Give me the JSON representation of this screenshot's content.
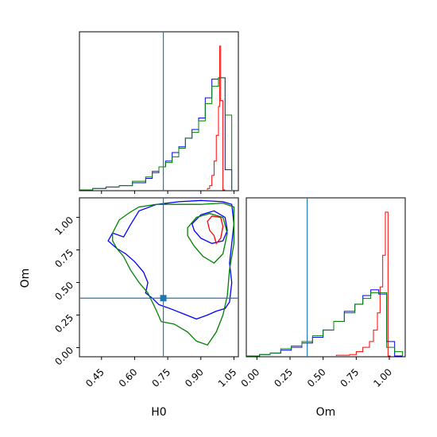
{
  "chart_data": [
    {
      "type": "histogram",
      "panel": "H0-marginal",
      "xlim": [
        0.35,
        1.07
      ],
      "ylim": [
        0,
        1
      ],
      "truth": 0.73,
      "series": [
        {
          "color": "#ff0000",
          "edges": [
            0.93,
            0.94,
            0.95,
            0.96,
            0.97,
            0.98,
            0.985,
            0.99,
            1.0,
            1.01
          ],
          "values": [
            0.01,
            0.03,
            0.1,
            0.2,
            0.38,
            0.58,
            1.0,
            0.62,
            0.0
          ]
        },
        {
          "color": "#0000ff",
          "edges": [
            0.35,
            0.41,
            0.47,
            0.53,
            0.59,
            0.65,
            0.68,
            0.71,
            0.74,
            0.77,
            0.8,
            0.83,
            0.86,
            0.89,
            0.92,
            0.95,
            0.98,
            1.01,
            1.04
          ],
          "values": [
            0.0,
            0.01,
            0.02,
            0.03,
            0.05,
            0.08,
            0.12,
            0.16,
            0.2,
            0.26,
            0.3,
            0.36,
            0.42,
            0.5,
            0.64,
            0.77,
            0.78,
            0.14
          ]
        },
        {
          "color": "#008000",
          "edges": [
            0.35,
            0.41,
            0.47,
            0.53,
            0.59,
            0.65,
            0.68,
            0.71,
            0.74,
            0.77,
            0.8,
            0.83,
            0.86,
            0.89,
            0.92,
            0.95,
            0.98,
            1.01,
            1.04
          ],
          "values": [
            0.0,
            0.01,
            0.02,
            0.03,
            0.06,
            0.09,
            0.13,
            0.16,
            0.19,
            0.23,
            0.29,
            0.36,
            0.4,
            0.48,
            0.6,
            0.72,
            0.78,
            0.52
          ]
        }
      ]
    },
    {
      "type": "contour",
      "panel": "H0-Om-joint",
      "xlabel": "H0",
      "ylabel": "Om",
      "xlim": [
        0.35,
        1.07
      ],
      "ylim": [
        -0.07,
        1.15
      ],
      "xticks": [
        "0.45",
        "0.60",
        "0.75",
        "0.90",
        "1.05"
      ],
      "xtick_values": [
        0.45,
        0.6,
        0.75,
        0.9,
        1.05
      ],
      "yticks": [
        "0.00",
        "0.25",
        "0.50",
        "0.75",
        "1.00"
      ],
      "ytick_values": [
        0.0,
        0.25,
        0.5,
        0.75,
        1.0
      ],
      "truth": {
        "x": 0.73,
        "y": 0.38
      },
      "contours": [
        {
          "color": "#0000ff",
          "points": [
            [
              0.48,
              0.82
            ],
            [
              0.5,
              0.88
            ],
            [
              0.55,
              0.85
            ],
            [
              0.58,
              0.94
            ],
            [
              0.62,
              1.05
            ],
            [
              0.7,
              1.1
            ],
            [
              0.8,
              1.12
            ],
            [
              0.9,
              1.13
            ],
            [
              1.0,
              1.12
            ],
            [
              1.04,
              1.1
            ],
            [
              1.05,
              0.95
            ],
            [
              1.04,
              0.8
            ],
            [
              1.03,
              0.65
            ],
            [
              1.04,
              0.5
            ],
            [
              1.03,
              0.35
            ],
            [
              1.01,
              0.3
            ],
            [
              0.97,
              0.28
            ],
            [
              0.93,
              0.25
            ],
            [
              0.88,
              0.22
            ],
            [
              0.82,
              0.26
            ],
            [
              0.76,
              0.3
            ],
            [
              0.71,
              0.33
            ],
            [
              0.68,
              0.38
            ],
            [
              0.65,
              0.42
            ],
            [
              0.66,
              0.5
            ],
            [
              0.64,
              0.58
            ],
            [
              0.6,
              0.66
            ],
            [
              0.56,
              0.72
            ],
            [
              0.52,
              0.76
            ],
            [
              0.48,
              0.82
            ]
          ]
        },
        {
          "color": "#0000ff",
          "points": [
            [
              0.86,
              0.95
            ],
            [
              0.9,
              1.02
            ],
            [
              0.96,
              1.05
            ],
            [
              1.01,
              1.0
            ],
            [
              1.02,
              0.9
            ],
            [
              1.0,
              0.82
            ],
            [
              0.95,
              0.8
            ],
            [
              0.9,
              0.84
            ],
            [
              0.87,
              0.9
            ],
            [
              0.86,
              0.95
            ]
          ]
        },
        {
          "color": "#008000",
          "points": [
            [
              0.5,
              0.88
            ],
            [
              0.53,
              0.98
            ],
            [
              0.58,
              1.04
            ],
            [
              0.62,
              1.08
            ],
            [
              0.7,
              1.1
            ],
            [
              0.8,
              1.1
            ],
            [
              0.9,
              1.1
            ],
            [
              1.0,
              1.11
            ],
            [
              1.05,
              1.08
            ],
            [
              1.05,
              0.95
            ],
            [
              1.05,
              0.8
            ],
            [
              1.03,
              0.6
            ],
            [
              1.02,
              0.4
            ],
            [
              1.0,
              0.25
            ],
            [
              0.97,
              0.12
            ],
            [
              0.93,
              0.02
            ],
            [
              0.88,
              0.05
            ],
            [
              0.84,
              0.12
            ],
            [
              0.78,
              0.18
            ],
            [
              0.72,
              0.2
            ],
            [
              0.7,
              0.28
            ],
            [
              0.68,
              0.35
            ],
            [
              0.66,
              0.42
            ],
            [
              0.62,
              0.5
            ],
            [
              0.58,
              0.6
            ],
            [
              0.55,
              0.7
            ],
            [
              0.52,
              0.76
            ],
            [
              0.5,
              0.82
            ],
            [
              0.5,
              0.88
            ]
          ]
        },
        {
          "color": "#008000",
          "points": [
            [
              0.84,
              0.92
            ],
            [
              0.88,
              1.0
            ],
            [
              0.94,
              1.03
            ],
            [
              1.0,
              1.0
            ],
            [
              1.02,
              0.88
            ],
            [
              1.0,
              0.72
            ],
            [
              0.96,
              0.65
            ],
            [
              0.91,
              0.7
            ],
            [
              0.87,
              0.78
            ],
            [
              0.84,
              0.86
            ],
            [
              0.84,
              0.92
            ]
          ]
        },
        {
          "color": "#ff0000",
          "points": [
            [
              0.93,
              0.97
            ],
            [
              0.95,
              1.01
            ],
            [
              0.99,
              1.0
            ],
            [
              1.0,
              0.93
            ],
            [
              0.99,
              0.84
            ],
            [
              0.97,
              0.8
            ],
            [
              0.96,
              0.86
            ],
            [
              0.94,
              0.9
            ],
            [
              0.93,
              0.97
            ]
          ]
        }
      ]
    },
    {
      "type": "histogram",
      "panel": "Om-marginal",
      "xlabel": "Om",
      "xlim": [
        -0.08,
        1.12
      ],
      "ylim": [
        0,
        1
      ],
      "xticks": [
        "0.00",
        "0.25",
        "0.50",
        "0.75",
        "1.00"
      ],
      "xtick_values": [
        0.0,
        0.25,
        0.5,
        0.75,
        1.0
      ],
      "truth": 0.38,
      "series": [
        {
          "color": "#ff0000",
          "edges": [
            0.6,
            0.7,
            0.75,
            0.8,
            0.85,
            0.88,
            0.91,
            0.93,
            0.95,
            0.97,
            0.99,
            1.01
          ],
          "values": [
            0.005,
            0.01,
            0.03,
            0.06,
            0.1,
            0.18,
            0.3,
            0.48,
            0.7,
            1.0,
            0.0
          ]
        },
        {
          "color": "#0000ff",
          "edges": [
            -0.08,
            0.02,
            0.1,
            0.18,
            0.26,
            0.34,
            0.42,
            0.5,
            0.58,
            0.66,
            0.74,
            0.8,
            0.86,
            0.92,
            0.98,
            1.04,
            1.1
          ],
          "values": [
            0.0,
            0.01,
            0.02,
            0.04,
            0.06,
            0.09,
            0.13,
            0.18,
            0.24,
            0.31,
            0.36,
            0.42,
            0.46,
            0.43,
            0.1,
            0.0
          ]
        },
        {
          "color": "#008000",
          "edges": [
            -0.08,
            0.02,
            0.1,
            0.18,
            0.26,
            0.34,
            0.42,
            0.5,
            0.58,
            0.66,
            0.74,
            0.8,
            0.86,
            0.92,
            0.98,
            1.04,
            1.1
          ],
          "values": [
            0.0,
            0.01,
            0.02,
            0.05,
            0.07,
            0.1,
            0.14,
            0.18,
            0.24,
            0.3,
            0.36,
            0.4,
            0.44,
            0.44,
            0.06,
            0.03
          ]
        }
      ]
    }
  ]
}
